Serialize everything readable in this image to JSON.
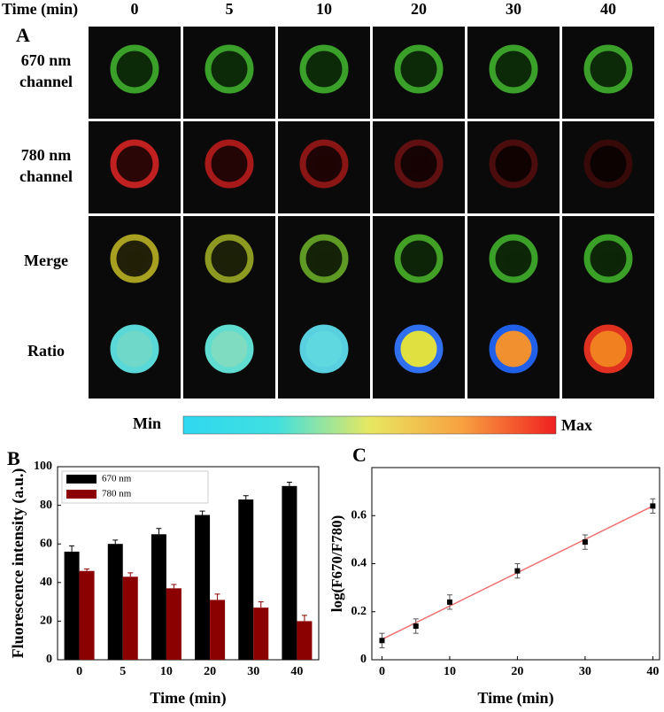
{
  "panel_a": {
    "letter": "A",
    "time_label": "Time (min)",
    "times": [
      "0",
      "5",
      "10",
      "20",
      "30",
      "40"
    ],
    "rows": [
      {
        "label": [
          "670 nm",
          "channel"
        ],
        "ring": [
          "#3aa02a",
          "#3aa02a",
          "#3aa02a",
          "#3aa02a",
          "#3aa02a",
          "#3aa02a"
        ],
        "core": [
          "#0d2a08",
          "#0d2a08",
          "#0d2a08",
          "#0d2a08",
          "#0d2a08",
          "#0d2a08"
        ]
      },
      {
        "label": [
          "780 nm",
          "channel"
        ],
        "ring": [
          "#c02020",
          "#a81a1a",
          "#8a1515",
          "#601010",
          "#4a0c0c",
          "#380909"
        ],
        "core": [
          "#2a0606",
          "#240505",
          "#1e0404",
          "#160303",
          "#110202",
          "#0c0202"
        ]
      },
      {
        "label": [
          "Merge"
        ],
        "ring": [
          "#a8a020",
          "#8c9a22",
          "#5e9a24",
          "#42a026",
          "#3aa028",
          "#3aa028"
        ],
        "core": [
          "#222008",
          "#1c2008",
          "#142208",
          "#0e2408",
          "#0d2608",
          "#0d2608"
        ]
      },
      {
        "label": [
          "Ratio"
        ],
        "ring": [
          "#5ad8d8",
          "#60dcd0",
          "#58d0e0",
          "#3070f0",
          "#2060e8",
          "#e03020"
        ],
        "core": [
          "#70d8c8",
          "#80dcc0",
          "#60d8e0",
          "#e0e040",
          "#f09030",
          "#f08020"
        ]
      }
    ],
    "colorbar": {
      "min": "Min",
      "max": "Max",
      "colors": [
        "#30d8f0",
        "#40e0e0",
        "#e8e860",
        "#f8a040",
        "#f02020"
      ]
    }
  },
  "chart_data": [
    {
      "type": "bar",
      "letter": "B",
      "categories": [
        "0",
        "5",
        "10",
        "20",
        "30",
        "40"
      ],
      "series": [
        {
          "name": "670 nm",
          "color": "#000000",
          "values": [
            56,
            60,
            65,
            75,
            83,
            90
          ],
          "errors": [
            3,
            2,
            3,
            2,
            2,
            2
          ]
        },
        {
          "name": "780 nm",
          "color": "#8b0000",
          "values": [
            46,
            43,
            37,
            31,
            27,
            20
          ],
          "errors": [
            1,
            2,
            2,
            3,
            3,
            3
          ]
        }
      ],
      "xlabel": "Time (min)",
      "ylabel": "Fluorescence intensity (a.u.)",
      "ylim": [
        0,
        100
      ],
      "yticks": [
        0,
        20,
        40,
        60,
        80,
        100
      ],
      "legend": "upper-left"
    },
    {
      "type": "scatter",
      "letter": "C",
      "x": [
        0,
        5,
        10,
        20,
        30,
        40
      ],
      "series": [
        {
          "color": "#000000",
          "values": [
            0.08,
            0.14,
            0.24,
            0.37,
            0.49,
            0.64
          ],
          "errors": [
            0.03,
            0.03,
            0.03,
            0.03,
            0.03,
            0.03
          ]
        }
      ],
      "fit": {
        "x": [
          0,
          40
        ],
        "y": [
          0.085,
          0.64
        ],
        "color": "#f07070"
      },
      "xlabel": "Time (min)",
      "ylabel": "log(F670/F780)",
      "xlim": [
        -1.5,
        41
      ],
      "xticks": [
        0,
        10,
        20,
        30,
        40
      ],
      "ylim": [
        0,
        0.8
      ],
      "yticks": [
        0,
        0.2,
        0.4,
        0.6
      ]
    }
  ]
}
